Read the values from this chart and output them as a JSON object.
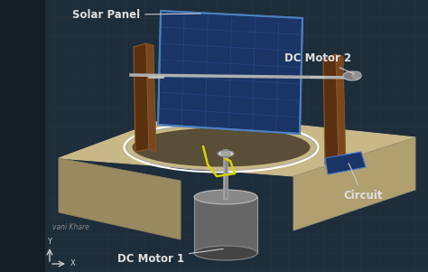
{
  "bg_color": "#1e2d3a",
  "grid_color": "#2a3d4e",
  "labels": {
    "solar_panel": "Solar Panel",
    "dc_motor2": "DC Motor 2",
    "dc_motor1": "DC Motor 1",
    "circuit": "Circuit",
    "author": "vani Khare"
  },
  "colors": {
    "base_top": "#c8b887",
    "base_left": "#9a8a60",
    "base_right": "#b0a070",
    "circle_edge": "#ffffff",
    "circle_inner": "#8a7a5a",
    "motor1_body": "#666666",
    "motor1_top": "#888888",
    "motor1_shaft": "#aaaaaa",
    "solar_panel_face": "#1a3566",
    "solar_panel_grid": "#2a4a8a",
    "solar_panel_frame": "#5588bb",
    "ldr_board_dark": "#5a3010",
    "ldr_board_mid": "#7a4820",
    "ldr_board_light": "#8a5828",
    "circuit_board": "#1a3566",
    "wire_color": "#d4d400",
    "annotation_line": "#cccccc",
    "text_color": "#e0e0e0",
    "axis_color": "#cccccc"
  },
  "figsize": [
    4.74,
    3.01
  ],
  "dpi": 100
}
